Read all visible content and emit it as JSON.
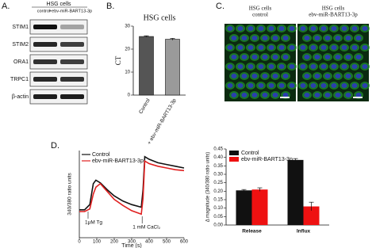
{
  "figure": {
    "panel_a": {
      "label": "A.",
      "header": "HSG cells",
      "lanes": [
        "control",
        "+ebv-miR-BART13-3p"
      ],
      "rows": [
        "STIM1",
        "STIM2",
        "ORA1",
        "TRPC1",
        "β-actin"
      ]
    },
    "panel_b_label": "B.",
    "panel_c": {
      "label": "C.",
      "images": [
        {
          "line1": "HSG cells",
          "line2": "control"
        },
        {
          "line1": "HSG cells",
          "line2": "ebv-miR-BART13-3p"
        }
      ]
    },
    "panel_d_label": "D."
  },
  "chart_data": [
    {
      "type": "bar",
      "title": "HSG cells",
      "y_label": "CT",
      "categories": [
        "Control",
        "+ ebv-miR-BART13-3p"
      ],
      "values": [
        25.5,
        24.3
      ],
      "errors": [
        0.3,
        0.4
      ],
      "colors": [
        "#555555",
        "#9a9a9a"
      ],
      "ylim": [
        0,
        30
      ],
      "yticks": [
        0,
        10,
        20,
        30
      ]
    },
    {
      "type": "line",
      "x_label": "Time (s)",
      "y_label": "340/380 ratio units",
      "x": [
        0,
        30,
        60,
        80,
        95,
        120,
        160,
        200,
        250,
        300,
        355,
        365,
        375,
        400,
        450,
        500,
        550,
        600
      ],
      "series": [
        {
          "name": "Control",
          "color": "#111111",
          "values": [
            0.32,
            0.32,
            0.38,
            0.62,
            0.66,
            0.63,
            0.55,
            0.48,
            0.42,
            0.38,
            0.35,
            0.55,
            0.93,
            0.9,
            0.86,
            0.84,
            0.82,
            0.8
          ]
        },
        {
          "name": "ebv-miR-BART13-3p",
          "color": "#e02020",
          "values": [
            0.3,
            0.3,
            0.33,
            0.5,
            0.58,
            0.62,
            0.53,
            0.44,
            0.37,
            0.31,
            0.27,
            0.45,
            0.88,
            0.85,
            0.82,
            0.8,
            0.78,
            0.77
          ]
        }
      ],
      "xlim": [
        0,
        600
      ],
      "xticks": [
        0,
        100,
        200,
        300,
        400,
        500,
        600
      ],
      "ylim": [
        0,
        1
      ],
      "annotations": [
        {
          "text": "1μM Tg",
          "x": 50
        },
        {
          "text": "1 mM CaCl₂",
          "x": 360
        }
      ],
      "legend": "top-left"
    },
    {
      "type": "grouped-bar",
      "y_label": "Δ magnitude (340/380 ratio units)",
      "categories": [
        "Release",
        "Influx"
      ],
      "series": [
        {
          "name": "Control",
          "color": "#111111",
          "values": [
            0.205,
            0.385
          ],
          "errors": [
            0.005,
            0.008
          ]
        },
        {
          "name": "ebv-miR-BART13-3p",
          "color": "#ee1111",
          "values": [
            0.21,
            0.11
          ],
          "errors": [
            0.01,
            0.025
          ]
        }
      ],
      "ylim": [
        0,
        0.45
      ],
      "yticks": [
        {
          "value": 0,
          "label": "0.00"
        },
        0.05,
        {
          "value": 0.1,
          "label": "0.10"
        },
        0.15,
        {
          "value": 0.2,
          "label": "0.20"
        },
        0.25,
        {
          "value": 0.3,
          "label": "0.30"
        },
        0.35,
        {
          "value": 0.4,
          "label": "0.40"
        },
        0.45
      ],
      "legend": "top-left"
    }
  ]
}
